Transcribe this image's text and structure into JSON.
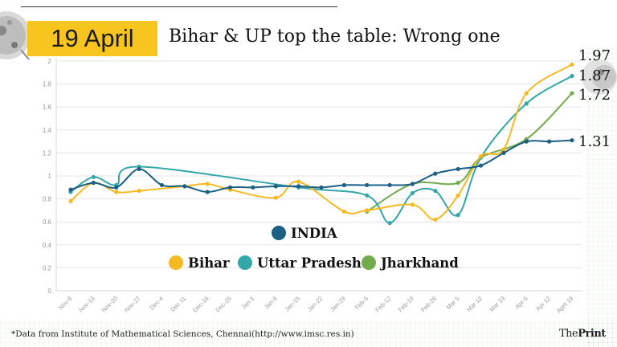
{
  "header": {
    "date_badge": "19 April",
    "title": "Bihar & UP top the table: Wrong one"
  },
  "footer": {
    "source": "*Data from Institute of Mathematical Sciences, Chennai(http://www.imsc.res.in)",
    "brand_the": "The",
    "brand_print": "Print"
  },
  "chart_data": {
    "type": "line",
    "title": "Bihar & UP top the table: Wrong one",
    "xlabel": "",
    "ylabel": "",
    "ylim": [
      0,
      2
    ],
    "yticks": [
      "0",
      "0.2",
      "0.4",
      "0.6",
      "0.8",
      "1",
      "1.2",
      "1.4",
      "1.6",
      "1.8",
      "2"
    ],
    "categories": [
      "Nov-6",
      "Nov-13",
      "Nov-20",
      "Nov-27",
      "Dec-4",
      "Dec 11",
      "Dec-18",
      "Dec-25",
      "Jan-1",
      "Jan-8",
      "Jan-15",
      "Jan-22",
      "Jan-29",
      "Feb-5",
      "Feb-12",
      "Feb-19",
      "Feb-26",
      "Mar 5",
      "Mar 12",
      "Mar 19",
      "Apr-5",
      "Apr 12",
      "April 19"
    ],
    "grid": true,
    "legend": "center",
    "series": [
      {
        "name": "INDIA",
        "color": "#1c5f85",
        "values": [
          0.88,
          0.94,
          0.9,
          1.06,
          0.92,
          0.91,
          0.86,
          0.9,
          0.9,
          0.91,
          0.91,
          0.9,
          0.92,
          0.92,
          0.92,
          0.93,
          1.02,
          1.06,
          1.09,
          1.2,
          1.3,
          1.3,
          1.31
        ]
      },
      {
        "name": "Bihar",
        "color": "#f5b922",
        "values": [
          0.78,
          0.94,
          0.86,
          0.87,
          null,
          0.91,
          0.93,
          0.88,
          null,
          0.81,
          0.95,
          null,
          0.69,
          0.7,
          null,
          0.75,
          0.62,
          0.83,
          1.17,
          1.23,
          1.72,
          null,
          1.97
        ]
      },
      {
        "name": "Uttar Pradesh",
        "color": "#33a6a8",
        "values": [
          0.86,
          0.99,
          0.92,
          1.08,
          null,
          null,
          null,
          null,
          null,
          null,
          0.9,
          null,
          null,
          0.83,
          0.59,
          0.85,
          0.87,
          0.66,
          1.16,
          null,
          1.63,
          null,
          1.87
        ]
      },
      {
        "name": "Jharkhand",
        "color": "#72ab4c",
        "values": [
          null,
          null,
          null,
          null,
          null,
          null,
          null,
          null,
          null,
          null,
          null,
          null,
          null,
          0.69,
          null,
          0.93,
          null,
          0.94,
          1.16,
          null,
          1.32,
          null,
          1.72
        ]
      }
    ],
    "end_labels": [
      {
        "series": "Bihar",
        "text": "1.97"
      },
      {
        "series": "Uttar Pradesh",
        "text": "1.87"
      },
      {
        "series": "Jharkhand",
        "text": "1.72"
      },
      {
        "series": "INDIA",
        "text": "1.31"
      }
    ],
    "legend_entries": [
      {
        "series": "INDIA",
        "label": "INDIA",
        "color": "#1c5f85"
      },
      {
        "series": "Bihar",
        "label": "Bihar",
        "color": "#f5b922"
      },
      {
        "series": "Uttar Pradesh",
        "label": "Uttar Pradesh",
        "color": "#33a6a8"
      },
      {
        "series": "Jharkhand",
        "label": "Jharkhand",
        "color": "#72ab4c"
      }
    ]
  }
}
